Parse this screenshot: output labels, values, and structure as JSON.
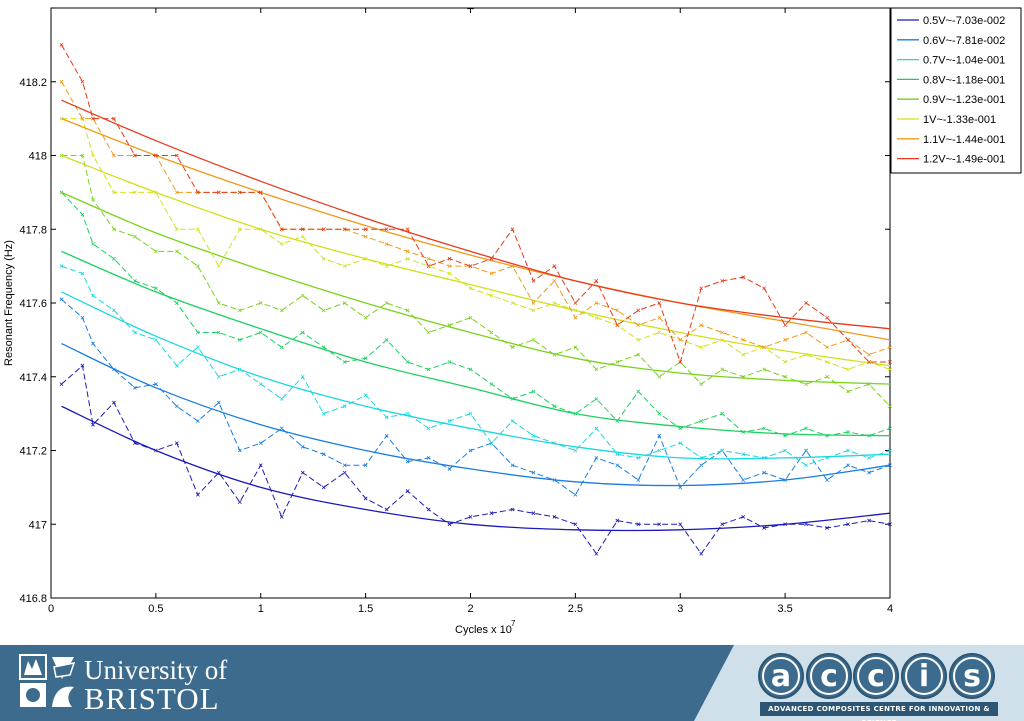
{
  "chart_data": {
    "type": "line",
    "title": "_",
    "xlabel": "Cycles x 10",
    "xlabel_exponent": "7",
    "ylabel": "Resonant Frequency (Hz)",
    "xlim": [
      0,
      4
    ],
    "ylim": [
      416.8,
      418.4
    ],
    "xticks": [
      0,
      0.5,
      1,
      1.5,
      2,
      2.5,
      3,
      3.5,
      4
    ],
    "xtick_labels": [
      "0",
      "0.5",
      "1",
      "1.5",
      "2",
      "2.5",
      "3",
      "3.5",
      "4"
    ],
    "yticks": [
      416.8,
      417,
      417.2,
      417.4,
      417.6,
      417.8,
      418,
      418.2
    ],
    "ytick_labels": [
      "416.8",
      "417",
      "417.2",
      "417.4",
      "417.6",
      "417.8",
      "418",
      "418.2"
    ],
    "grid": false,
    "legend_position": "top-right-outside",
    "series": [
      {
        "name": "0.5V~-7.03e-002",
        "color": "#1a1ab8",
        "fit": {
          "x": [
            0.05,
            0.5,
            1.0,
            1.5,
            2.0,
            2.5,
            3.0,
            3.5,
            4.0
          ],
          "y": [
            417.32,
            417.2,
            417.1,
            417.04,
            417.0,
            416.985,
            416.985,
            417.0,
            417.03
          ]
        },
        "measured": {
          "x": [
            0.05,
            0.15,
            0.2,
            0.3,
            0.4,
            0.5,
            0.6,
            0.7,
            0.8,
            0.9,
            1.0,
            1.1,
            1.2,
            1.3,
            1.4,
            1.5,
            1.6,
            1.7,
            1.8,
            1.9,
            2.0,
            2.1,
            2.2,
            2.3,
            2.4,
            2.5,
            2.6,
            2.7,
            2.8,
            2.9,
            3.0,
            3.1,
            3.2,
            3.3,
            3.4,
            3.5,
            3.6,
            3.7,
            3.8,
            3.9,
            4.0
          ],
          "y": [
            417.38,
            417.43,
            417.27,
            417.33,
            417.22,
            417.2,
            417.22,
            417.08,
            417.14,
            417.06,
            417.16,
            417.02,
            417.14,
            417.1,
            417.14,
            417.07,
            417.04,
            417.09,
            417.04,
            417.0,
            417.02,
            417.03,
            417.04,
            417.03,
            417.02,
            417.0,
            416.92,
            417.01,
            417.0,
            417.0,
            417.0,
            416.92,
            417.0,
            417.02,
            416.99,
            417.0,
            417.0,
            416.99,
            417.0,
            417.01,
            417.0
          ]
        }
      },
      {
        "name": "0.6V~-7.81e-002",
        "color": "#1a7de0",
        "fit": {
          "x": [
            0.05,
            0.5,
            1.0,
            1.5,
            2.0,
            2.5,
            3.0,
            3.5,
            4.0
          ],
          "y": [
            417.49,
            417.37,
            417.27,
            417.2,
            417.15,
            417.115,
            417.105,
            417.12,
            417.16
          ]
        },
        "measured": {
          "x": [
            0.05,
            0.15,
            0.2,
            0.3,
            0.4,
            0.5,
            0.6,
            0.7,
            0.8,
            0.9,
            1.0,
            1.1,
            1.2,
            1.3,
            1.4,
            1.5,
            1.6,
            1.7,
            1.8,
            1.9,
            2.0,
            2.1,
            2.2,
            2.3,
            2.4,
            2.5,
            2.6,
            2.7,
            2.8,
            2.9,
            3.0,
            3.1,
            3.2,
            3.3,
            3.4,
            3.5,
            3.6,
            3.7,
            3.8,
            3.9,
            4.0
          ],
          "y": [
            417.61,
            417.56,
            417.49,
            417.42,
            417.37,
            417.38,
            417.32,
            417.28,
            417.33,
            417.2,
            417.22,
            417.26,
            417.21,
            417.19,
            417.16,
            417.16,
            417.24,
            417.17,
            417.18,
            417.15,
            417.2,
            417.22,
            417.16,
            417.14,
            417.12,
            417.08,
            417.18,
            417.16,
            417.12,
            417.24,
            417.1,
            417.16,
            417.2,
            417.12,
            417.14,
            417.12,
            417.2,
            417.12,
            417.16,
            417.14,
            417.16
          ]
        }
      },
      {
        "name": "0.7V~-1.04e-001",
        "color": "#1ad7e0",
        "fit": {
          "x": [
            0.05,
            0.5,
            1.0,
            1.5,
            2.0,
            2.5,
            3.0,
            3.5,
            4.0
          ],
          "y": [
            417.63,
            417.51,
            417.4,
            417.32,
            417.26,
            417.21,
            417.18,
            417.18,
            417.19
          ]
        },
        "measured": {
          "x": [
            0.05,
            0.15,
            0.2,
            0.3,
            0.4,
            0.5,
            0.6,
            0.7,
            0.8,
            0.9,
            1.0,
            1.1,
            1.2,
            1.3,
            1.4,
            1.5,
            1.6,
            1.7,
            1.8,
            1.9,
            2.0,
            2.1,
            2.2,
            2.3,
            2.4,
            2.5,
            2.6,
            2.7,
            2.8,
            2.9,
            3.0,
            3.1,
            3.2,
            3.3,
            3.4,
            3.5,
            3.6,
            3.7,
            3.8,
            3.9,
            4.0
          ],
          "y": [
            417.7,
            417.68,
            417.62,
            417.58,
            417.52,
            417.5,
            417.43,
            417.48,
            417.4,
            417.42,
            417.38,
            417.34,
            417.4,
            417.3,
            417.32,
            417.35,
            417.29,
            417.3,
            417.26,
            417.28,
            417.3,
            417.22,
            417.28,
            417.24,
            417.22,
            417.2,
            417.26,
            417.19,
            417.18,
            417.2,
            417.22,
            417.18,
            417.2,
            417.19,
            417.18,
            417.2,
            417.16,
            417.18,
            417.2,
            417.18,
            417.2
          ]
        }
      },
      {
        "name": "0.8V~-1.18e-001",
        "color": "#1ad060",
        "fit": {
          "x": [
            0.05,
            0.5,
            1.0,
            1.5,
            2.0,
            2.5,
            3.0,
            3.5,
            4.0
          ],
          "y": [
            417.74,
            417.63,
            417.53,
            417.44,
            417.37,
            417.3,
            417.265,
            417.245,
            417.24
          ]
        },
        "measured": {
          "x": [
            0.05,
            0.15,
            0.2,
            0.3,
            0.4,
            0.5,
            0.6,
            0.7,
            0.8,
            0.9,
            1.0,
            1.1,
            1.2,
            1.3,
            1.4,
            1.5,
            1.6,
            1.7,
            1.8,
            1.9,
            2.0,
            2.1,
            2.2,
            2.3,
            2.4,
            2.5,
            2.6,
            2.7,
            2.8,
            2.9,
            3.0,
            3.1,
            3.2,
            3.3,
            3.4,
            3.5,
            3.6,
            3.7,
            3.8,
            3.9,
            4.0
          ],
          "y": [
            417.9,
            417.84,
            417.76,
            417.72,
            417.66,
            417.64,
            417.6,
            417.52,
            417.52,
            417.5,
            417.52,
            417.48,
            417.52,
            417.48,
            417.44,
            417.45,
            417.5,
            417.44,
            417.42,
            417.44,
            417.42,
            417.38,
            417.34,
            417.36,
            417.32,
            417.3,
            417.34,
            417.28,
            417.36,
            417.3,
            417.26,
            417.28,
            417.3,
            417.25,
            417.26,
            417.24,
            417.26,
            417.24,
            417.25,
            417.24,
            417.26
          ]
        }
      },
      {
        "name": "0.9V~-1.23e-001",
        "color": "#7ad21a",
        "fit": {
          "x": [
            0.05,
            0.5,
            1.0,
            1.5,
            2.0,
            2.5,
            3.0,
            3.5,
            4.0
          ],
          "y": [
            417.9,
            417.79,
            417.69,
            417.6,
            417.52,
            417.45,
            417.41,
            417.39,
            417.38
          ]
        },
        "measured": {
          "x": [
            0.05,
            0.15,
            0.2,
            0.3,
            0.4,
            0.5,
            0.6,
            0.7,
            0.8,
            0.9,
            1.0,
            1.1,
            1.2,
            1.3,
            1.4,
            1.5,
            1.6,
            1.7,
            1.8,
            1.9,
            2.0,
            2.1,
            2.2,
            2.3,
            2.4,
            2.5,
            2.6,
            2.7,
            2.8,
            2.9,
            3.0,
            3.1,
            3.2,
            3.3,
            3.4,
            3.5,
            3.6,
            3.7,
            3.8,
            3.9,
            4.0
          ],
          "y": [
            418.0,
            418.0,
            417.88,
            417.8,
            417.78,
            417.74,
            417.74,
            417.7,
            417.6,
            417.58,
            417.6,
            417.58,
            417.62,
            417.58,
            417.6,
            417.56,
            417.6,
            417.58,
            417.52,
            417.54,
            417.56,
            417.52,
            417.48,
            417.5,
            417.46,
            417.48,
            417.42,
            417.44,
            417.46,
            417.4,
            417.44,
            417.38,
            417.42,
            417.4,
            417.42,
            417.4,
            417.38,
            417.4,
            417.36,
            417.38,
            417.32
          ]
        }
      },
      {
        "name": "1V~-1.33e-001",
        "color": "#d2e01a",
        "fit": {
          "x": [
            0.05,
            0.5,
            1.0,
            1.5,
            2.0,
            2.5,
            3.0,
            3.5,
            4.0
          ],
          "y": [
            418.0,
            417.9,
            417.8,
            417.72,
            417.65,
            417.58,
            417.52,
            417.47,
            417.43
          ]
        },
        "measured": {
          "x": [
            0.05,
            0.15,
            0.2,
            0.3,
            0.4,
            0.5,
            0.6,
            0.7,
            0.8,
            0.9,
            1.0,
            1.1,
            1.2,
            1.3,
            1.4,
            1.5,
            1.6,
            1.7,
            1.8,
            1.9,
            2.0,
            2.1,
            2.2,
            2.3,
            2.4,
            2.5,
            2.6,
            2.7,
            2.8,
            2.9,
            3.0,
            3.1,
            3.2,
            3.3,
            3.4,
            3.5,
            3.6,
            3.7,
            3.8,
            3.9,
            4.0
          ],
          "y": [
            418.1,
            418.1,
            418.0,
            417.9,
            417.9,
            417.9,
            417.8,
            417.8,
            417.7,
            417.8,
            417.8,
            417.76,
            417.78,
            417.72,
            417.7,
            417.72,
            417.7,
            417.72,
            417.7,
            417.68,
            417.64,
            417.62,
            417.6,
            417.58,
            417.6,
            417.58,
            417.56,
            417.54,
            417.5,
            417.52,
            417.5,
            417.48,
            417.5,
            417.46,
            417.48,
            417.44,
            417.46,
            417.44,
            417.42,
            417.44,
            417.42
          ]
        }
      },
      {
        "name": "1.1V~-1.44e-001",
        "color": "#f09a1a",
        "fit": {
          "x": [
            0.05,
            0.5,
            1.0,
            1.5,
            2.0,
            2.5,
            3.0,
            3.5,
            4.0
          ],
          "y": [
            418.1,
            418.0,
            417.9,
            417.81,
            417.73,
            417.66,
            417.6,
            417.55,
            417.5
          ]
        },
        "measured": {
          "x": [
            0.05,
            0.15,
            0.2,
            0.3,
            0.4,
            0.5,
            0.6,
            0.7,
            0.8,
            0.9,
            1.0,
            1.1,
            1.2,
            1.3,
            1.4,
            1.5,
            1.6,
            1.7,
            1.8,
            1.9,
            2.0,
            2.1,
            2.2,
            2.3,
            2.4,
            2.5,
            2.6,
            2.7,
            2.8,
            2.9,
            3.0,
            3.1,
            3.2,
            3.3,
            3.4,
            3.5,
            3.6,
            3.7,
            3.8,
            3.9,
            4.0
          ],
          "y": [
            418.2,
            418.1,
            418.1,
            418.0,
            418.0,
            418.0,
            417.9,
            417.9,
            417.9,
            417.9,
            417.9,
            417.8,
            417.8,
            417.8,
            417.8,
            417.78,
            417.76,
            417.74,
            417.72,
            417.7,
            417.7,
            417.68,
            417.7,
            417.6,
            417.66,
            417.56,
            417.6,
            417.58,
            417.54,
            417.56,
            417.5,
            417.54,
            417.52,
            417.5,
            417.48,
            417.5,
            417.52,
            417.48,
            417.5,
            417.46,
            417.48
          ]
        }
      },
      {
        "name": "1.2V~-1.49e-001",
        "color": "#e83a1a",
        "fit": {
          "x": [
            0.05,
            0.5,
            1.0,
            1.5,
            2.0,
            2.5,
            3.0,
            3.5,
            4.0
          ],
          "y": [
            418.15,
            418.04,
            417.93,
            417.83,
            417.74,
            417.66,
            417.6,
            417.56,
            417.53
          ]
        },
        "measured": {
          "x": [
            0.05,
            0.15,
            0.2,
            0.3,
            0.4,
            0.5,
            0.6,
            0.7,
            0.8,
            0.9,
            1.0,
            1.1,
            1.2,
            1.3,
            1.4,
            1.5,
            1.6,
            1.7,
            1.8,
            1.9,
            2.0,
            2.1,
            2.2,
            2.3,
            2.4,
            2.5,
            2.6,
            2.7,
            2.8,
            2.9,
            3.0,
            3.1,
            3.2,
            3.3,
            3.4,
            3.5,
            3.6,
            3.7,
            3.8,
            3.9,
            4.0
          ],
          "y": [
            418.3,
            418.2,
            418.1,
            418.1,
            418.0,
            418.0,
            418.0,
            417.9,
            417.9,
            417.9,
            417.9,
            417.8,
            417.8,
            417.8,
            417.8,
            417.8,
            417.8,
            417.8,
            417.7,
            417.72,
            417.7,
            417.72,
            417.8,
            417.66,
            417.7,
            417.6,
            417.66,
            417.54,
            417.58,
            417.6,
            417.44,
            417.64,
            417.66,
            417.67,
            417.64,
            417.54,
            417.6,
            417.56,
            417.5,
            417.44,
            417.44
          ]
        }
      }
    ]
  },
  "footer": {
    "uob_line1": "University of",
    "uob_line2": "BRISTOL",
    "accis_letters": [
      "a",
      "c",
      "c",
      "i",
      "s"
    ],
    "accis_tagline": "ADVANCED COMPOSITES CENTRE FOR INNOVATION & SCIENCE",
    "band_color": "#3c6b8d",
    "accent_color": "#cfe0ea"
  }
}
